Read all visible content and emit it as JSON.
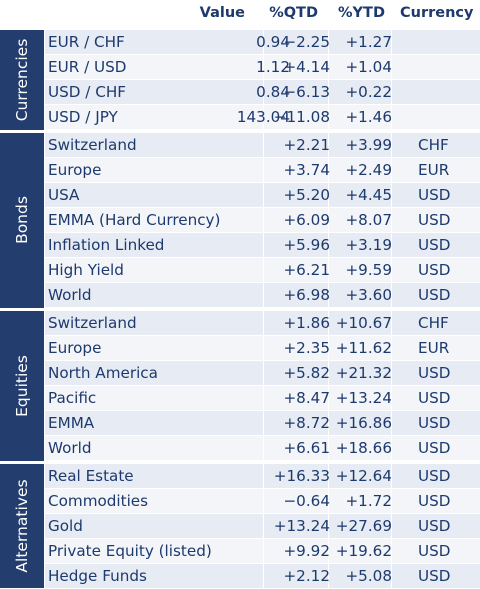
{
  "header": {
    "value": "Value",
    "qtd": "%QTD",
    "ytd": "%YTD",
    "currency": "Currency"
  },
  "groups": [
    {
      "label": "Currencies",
      "rows": [
        {
          "name": "EUR / CHF",
          "value": "0.94",
          "qtd": "−2.25",
          "ytd": "+1.27",
          "currency": ""
        },
        {
          "name": "EUR / USD",
          "value": "1.12",
          "qtd": "+4.14",
          "ytd": "+1.04",
          "currency": ""
        },
        {
          "name": "USD / CHF",
          "value": "0.84",
          "qtd": "−6.13",
          "ytd": "+0.22",
          "currency": ""
        },
        {
          "name": "USD / JPY",
          "value": "143.04",
          "qtd": "−11.08",
          "ytd": "+1.46",
          "currency": ""
        }
      ]
    },
    {
      "label": "Bonds",
      "rows": [
        {
          "name": "Switzerland",
          "value": "",
          "qtd": "+2.21",
          "ytd": "+3.99",
          "currency": "CHF"
        },
        {
          "name": "Europe",
          "value": "",
          "qtd": "+3.74",
          "ytd": "+2.49",
          "currency": "EUR"
        },
        {
          "name": "USA",
          "value": "",
          "qtd": "+5.20",
          "ytd": "+4.45",
          "currency": "USD"
        },
        {
          "name": "EMMA (Hard Currency)",
          "value": "",
          "qtd": "+6.09",
          "ytd": "+8.07",
          "currency": "USD"
        },
        {
          "name": "Inflation Linked",
          "value": "",
          "qtd": "+5.96",
          "ytd": "+3.19",
          "currency": "USD"
        },
        {
          "name": "High Yield",
          "value": "",
          "qtd": "+6.21",
          "ytd": "+9.59",
          "currency": "USD"
        },
        {
          "name": "World",
          "value": "",
          "qtd": "+6.98",
          "ytd": "+3.60",
          "currency": "USD"
        }
      ]
    },
    {
      "label": "Equities",
      "rows": [
        {
          "name": "Switzerland",
          "value": "",
          "qtd": "+1.86",
          "ytd": "+10.67",
          "currency": "CHF"
        },
        {
          "name": "Europe",
          "value": "",
          "qtd": "+2.35",
          "ytd": "+11.62",
          "currency": "EUR"
        },
        {
          "name": "North America",
          "value": "",
          "qtd": "+5.82",
          "ytd": "+21.32",
          "currency": "USD"
        },
        {
          "name": "Pacific",
          "value": "",
          "qtd": "+8.47",
          "ytd": "+13.24",
          "currency": "USD"
        },
        {
          "name": "EMMA",
          "value": "",
          "qtd": "+8.72",
          "ytd": "+16.86",
          "currency": "USD"
        },
        {
          "name": "World",
          "value": "",
          "qtd": "+6.61",
          "ytd": "+18.66",
          "currency": "USD"
        }
      ]
    },
    {
      "label": "Alternatives",
      "rows": [
        {
          "name": "Real Estate",
          "value": "",
          "qtd": "+16.33",
          "ytd": "+12.64",
          "currency": "USD"
        },
        {
          "name": "Commodities",
          "value": "",
          "qtd": "−0.64",
          "ytd": "+1.72",
          "currency": "USD"
        },
        {
          "name": "Gold",
          "value": "",
          "qtd": "+13.24",
          "ytd": "+27.69",
          "currency": "USD"
        },
        {
          "name": "Private Equity (listed)",
          "value": "",
          "qtd": "+9.92",
          "ytd": "+19.62",
          "currency": "USD"
        },
        {
          "name": "Hedge Funds",
          "value": "",
          "qtd": "+2.12",
          "ytd": "+5.08",
          "currency": "USD"
        }
      ]
    }
  ],
  "colors": {
    "group_band": "#233d6f",
    "text": "#1d3a6e",
    "row_odd": "#e7ebf3",
    "row_even": "#f3f5f9"
  }
}
